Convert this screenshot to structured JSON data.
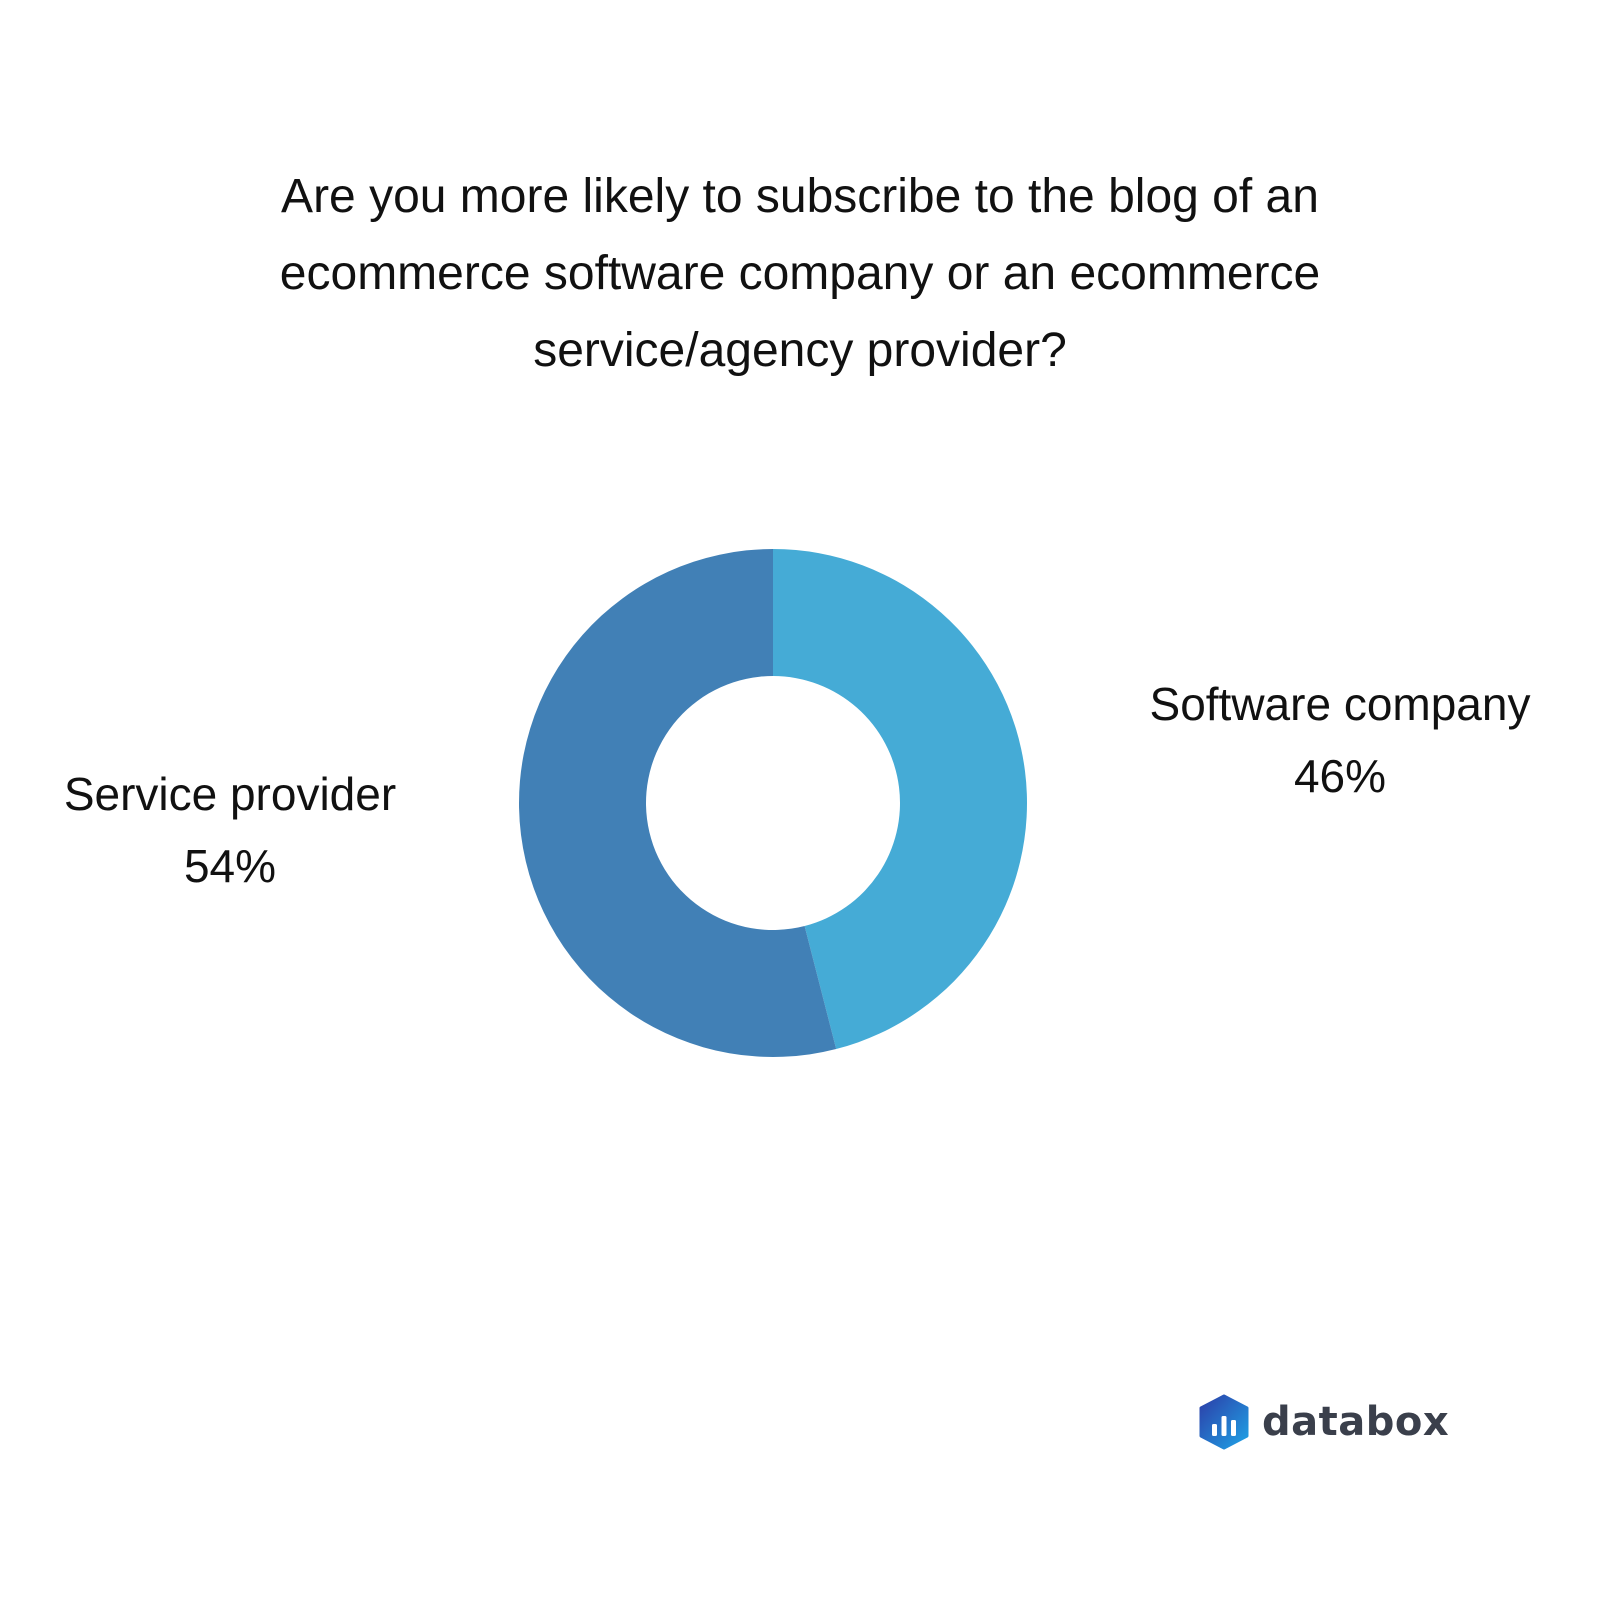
{
  "chart_data": {
    "type": "pie",
    "variant": "donut",
    "title": "Are you more likely to subscribe to the blog of an ecommerce software company or an ecommerce service/agency provider?",
    "slices": [
      {
        "label": "Software company",
        "value": 46,
        "value_label": "46%",
        "color": "#45abd6"
      },
      {
        "label": "Service provider",
        "value": 54,
        "value_label": "54%",
        "color": "#4180b6"
      }
    ],
    "legend": "none"
  },
  "brand": {
    "name": "databox",
    "logo_icon": "databox-logo-icon"
  }
}
